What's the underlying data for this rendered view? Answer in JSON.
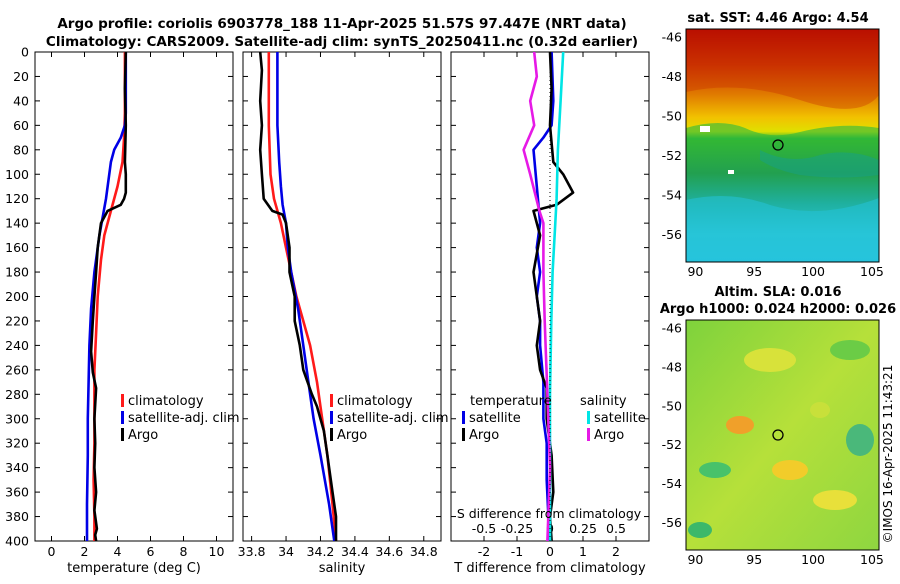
{
  "header": {
    "title_line1": "Argo profile: coriolis 6903778_188 11-Apr-2025 51.57S 97.447E (NRT data)",
    "title_line2": "Climatology: CARS2009. Satellite-adj clim: synTS_20250411.nc (0.32d earlier)"
  },
  "credit": "©IMOS 16-Apr-2025 11:43:21",
  "colors": {
    "climatology": "#ff1a1a",
    "satellite_adj": "#0000e6",
    "argo": "#000000",
    "cyan": "#00e5e5",
    "magenta": "#e619e6"
  },
  "chart_data": [
    {
      "id": "temperature",
      "type": "line",
      "xlabel": "temperature (deg C)",
      "ylabel": "",
      "xlim": [
        -1,
        11
      ],
      "ylim": [
        400,
        0
      ],
      "x_ticks": [
        0,
        2,
        4,
        6,
        8,
        10
      ],
      "x_tick_labels": [
        "0",
        "2",
        "4",
        "6",
        "8",
        "10"
      ],
      "y_ticks": [
        0,
        20,
        40,
        60,
        80,
        100,
        120,
        140,
        160,
        180,
        200,
        220,
        240,
        260,
        280,
        300,
        320,
        340,
        360,
        380,
        400
      ],
      "y_tick_labels": [
        "0",
        "20",
        "40",
        "60",
        "80",
        "100",
        "120",
        "140",
        "160",
        "180",
        "200",
        "220",
        "240",
        "260",
        "280",
        "300",
        "320",
        "340",
        "360",
        "380",
        "400"
      ],
      "legend": [
        "climatology",
        "satellite-adj. clim",
        "Argo"
      ],
      "series": [
        {
          "name": "climatology",
          "color": "#ff1a1a",
          "x": [
            4.45,
            4.45,
            4.4,
            4.3,
            4.0,
            3.6,
            3.2,
            3.0,
            2.8,
            2.7,
            2.6,
            2.6,
            2.6,
            2.55,
            2.6,
            2.6
          ],
          "y": [
            0,
            50,
            70,
            90,
            110,
            130,
            150,
            170,
            200,
            230,
            260,
            290,
            320,
            350,
            380,
            400
          ]
        },
        {
          "name": "satellite-adj. clim",
          "color": "#0000e6",
          "x": [
            4.5,
            4.5,
            4.45,
            4.2,
            3.8,
            3.6,
            3.3,
            2.9,
            2.6,
            2.4,
            2.3,
            2.25,
            2.2,
            2.2,
            2.15,
            2.15
          ],
          "y": [
            0,
            50,
            60,
            70,
            80,
            90,
            120,
            150,
            180,
            210,
            240,
            270,
            300,
            330,
            370,
            400
          ]
        },
        {
          "name": "Argo",
          "color": "#000000",
          "x": [
            4.5,
            4.45,
            4.5,
            4.45,
            4.5,
            4.5,
            4.4,
            4.2,
            3.4,
            3.0,
            2.8,
            2.7,
            2.6,
            2.5,
            2.4,
            2.5,
            2.7,
            2.6,
            2.65,
            2.6,
            2.7,
            2.6,
            2.75,
            2.65,
            2.7
          ],
          "y": [
            0,
            30,
            60,
            90,
            100,
            115,
            120,
            125,
            130,
            140,
            160,
            180,
            200,
            220,
            245,
            262,
            275,
            300,
            320,
            340,
            360,
            375,
            390,
            395,
            400
          ]
        }
      ]
    },
    {
      "id": "salinity",
      "type": "line",
      "xlabel": "salinity",
      "ylabel": "",
      "xlim": [
        33.75,
        34.9
      ],
      "ylim": [
        400,
        0
      ],
      "x_ticks": [
        33.8,
        34.0,
        34.2,
        34.4,
        34.6,
        34.8
      ],
      "x_tick_labels": [
        "33.8",
        "34",
        "34.2",
        "34.4",
        "34.6",
        "34.8"
      ],
      "legend": [
        "climatology",
        "satellite-adj. clim",
        "Argo"
      ],
      "series": [
        {
          "name": "climatology",
          "color": "#ff1a1a",
          "x": [
            33.9,
            33.9,
            33.91,
            33.93,
            33.97,
            34.0,
            34.03,
            34.06,
            34.1,
            34.14,
            34.18,
            34.21,
            34.24,
            34.27,
            34.29
          ],
          "y": [
            0,
            60,
            100,
            120,
            140,
            160,
            180,
            200,
            220,
            240,
            270,
            300,
            330,
            370,
            400
          ]
        },
        {
          "name": "satellite-adj. clim",
          "color": "#0000e6",
          "x": [
            33.95,
            33.95,
            33.96,
            33.97,
            33.98,
            34.0,
            34.01,
            34.03,
            34.07,
            34.1,
            34.13,
            34.16,
            34.2,
            34.25,
            34.28
          ],
          "y": [
            0,
            60,
            90,
            110,
            125,
            140,
            160,
            180,
            210,
            240,
            270,
            300,
            330,
            370,
            400
          ]
        },
        {
          "name": "Argo",
          "color": "#000000",
          "x": [
            33.85,
            33.86,
            33.85,
            33.86,
            33.85,
            33.86,
            33.87,
            33.92,
            33.98,
            34.0,
            34.02,
            34.02,
            34.05,
            34.05,
            34.08,
            34.1,
            34.15,
            34.18,
            34.22,
            34.24,
            34.27,
            34.29,
            34.29
          ],
          "y": [
            0,
            15,
            40,
            60,
            80,
            100,
            120,
            130,
            133,
            140,
            160,
            180,
            200,
            220,
            240,
            260,
            280,
            290,
            310,
            330,
            360,
            380,
            400
          ]
        }
      ]
    },
    {
      "id": "difference",
      "type": "line",
      "xlabel": "T difference from climatology",
      "top_xlabel": "S difference from climatology",
      "xlim": [
        -3,
        3
      ],
      "ylim": [
        400,
        0
      ],
      "x_ticks": [
        -2,
        -1,
        0,
        1,
        2
      ],
      "x_tick_labels": [
        "-2",
        "-1",
        "0",
        "1",
        "2"
      ],
      "s_ticks": [
        -0.5,
        -0.25,
        0,
        0.25,
        0.5
      ],
      "s_tick_labels": [
        "-0.5",
        "-0.25",
        "0",
        "0.25",
        "0.5"
      ],
      "legend_temperature_title": "temperature",
      "legend_salinity_title": "salinity",
      "legend_temperature": [
        "satellite",
        "Argo"
      ],
      "legend_salinity": [
        "satellite",
        "Argo"
      ],
      "series": [
        {
          "name": "T satellite",
          "color": "#0000e6",
          "x": [
            0.05,
            0.1,
            0.05,
            -0.2,
            -0.5,
            -0.4,
            -0.3,
            -0.4,
            -0.3,
            -0.4,
            -0.3,
            -0.3,
            -0.2,
            -0.2,
            -0.1,
            -0.1,
            -0.05,
            -0.05
          ],
          "y": [
            0,
            40,
            60,
            70,
            80,
            110,
            140,
            160,
            180,
            200,
            220,
            240,
            270,
            300,
            320,
            350,
            380,
            400
          ]
        },
        {
          "name": "T Argo",
          "color": "#000000",
          "x": [
            0.0,
            0.05,
            0.0,
            0.1,
            0.4,
            0.7,
            0.2,
            -0.5,
            -0.3,
            -0.5,
            -0.4,
            -0.3,
            -0.4,
            -0.3,
            -0.1,
            -0.1,
            0.05,
            0.1,
            0.0,
            0.05
          ],
          "y": [
            0,
            30,
            60,
            90,
            100,
            115,
            125,
            130,
            150,
            180,
            200,
            220,
            240,
            260,
            275,
            300,
            330,
            360,
            380,
            400
          ]
        },
        {
          "name": "S satellite",
          "color": "#00e5e5",
          "x": [
            0.1,
            0.08,
            0.06,
            0.05,
            0.04,
            0.02,
            0.01,
            0.0,
            0.0,
            0.0
          ],
          "y": [
            0,
            40,
            80,
            120,
            140,
            180,
            220,
            280,
            340,
            400
          ]
        },
        {
          "name": "S Argo",
          "color": "#e619e6",
          "x": [
            -0.12,
            -0.1,
            -0.15,
            -0.12,
            -0.2,
            -0.15,
            -0.08,
            -0.05,
            -0.05,
            -0.04,
            -0.02,
            0.0,
            -0.02
          ],
          "y": [
            0,
            20,
            40,
            60,
            80,
            100,
            130,
            140,
            180,
            220,
            280,
            340,
            400
          ]
        }
      ]
    }
  ],
  "maps": {
    "sst": {
      "title": "sat. SST: 4.46 Argo: 4.54",
      "x_tick_labels": [
        "90",
        "95",
        "100",
        "105"
      ],
      "y_tick_labels": [
        "-46",
        "-48",
        "-50",
        "-52",
        "-54",
        "-56"
      ],
      "marker_lon": 97.447,
      "marker_lat": -51.57
    },
    "sla": {
      "title_line1": "Altim. SLA: 0.016",
      "title_line2": "Argo h1000: 0.024 h2000: 0.026",
      "x_tick_labels": [
        "90",
        "95",
        "100",
        "105"
      ],
      "y_tick_labels": [
        "-46",
        "-48",
        "-50",
        "-52",
        "-54",
        "-56"
      ],
      "marker_lon": 97.447,
      "marker_lat": -51.57
    }
  }
}
